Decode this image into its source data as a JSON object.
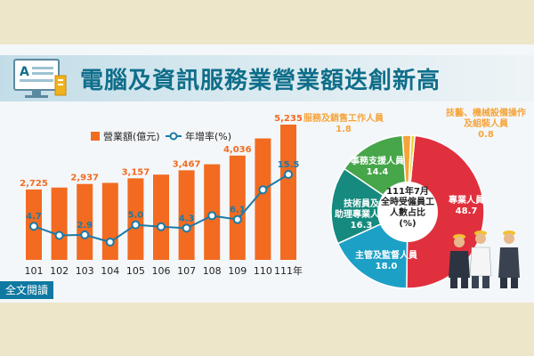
{
  "title": "電腦及資訊服務業營業額迭創新高",
  "full_text_button": "全文閱讀",
  "chart_data": [
    {
      "type": "bar",
      "categories": [
        "101",
        "102",
        "103",
        "104",
        "105",
        "106",
        "107",
        "108",
        "109",
        "110",
        "111年"
      ],
      "series": [
        {
          "name": "營業額(億元)",
          "type": "bar",
          "values": [
            2725,
            2800,
            2937,
            2980,
            3157,
            3300,
            3467,
            3700,
            4036,
            4700,
            5235
          ]
        },
        {
          "name": "年增率(%)",
          "type": "line",
          "values": [
            4.7,
            2.8,
            2.9,
            1.4,
            5.0,
            4.6,
            4.3,
            6.9,
            6.1,
            12.3,
            15.5
          ]
        }
      ],
      "bar_labels": [
        "2,725",
        "",
        "2,937",
        "",
        "3,157",
        "",
        "3,467",
        "",
        "4,036",
        "",
        "5,235"
      ],
      "line_labels": [
        "4.7",
        "",
        "2.9",
        "",
        "5.0",
        "",
        "4.3",
        "",
        "6.1",
        "",
        "15.5"
      ],
      "legend_placement": "top"
    },
    {
      "type": "pie",
      "center_label": "111年7月\n全時受僱員工\n人數占比\n(%)",
      "slices": [
        {
          "name": "專業人員",
          "value": 48.7,
          "color": "#e0303e",
          "label_value": "48.7"
        },
        {
          "name": "主管及監督人員",
          "value": 18.0,
          "color": "#1da0c6",
          "label_value": "18.0"
        },
        {
          "name": "技術員及\n助理專業人員",
          "value": 16.3,
          "color": "#168a7e",
          "label_value": "16.3"
        },
        {
          "name": "事務支援人員",
          "value": 14.4,
          "color": "#46a649",
          "label_value": "14.4"
        },
        {
          "name": "服務及銷售工作人員",
          "value": 1.8,
          "color": "#f5a43a",
          "label_value": "1.8"
        },
        {
          "name": "技藝、機械設備操作\n及組裝人員",
          "value": 0.8,
          "color": "#f2d230",
          "label_value": "0.8"
        }
      ]
    }
  ],
  "colors": {
    "bar": "#f26b21",
    "line": "#1b7aa6",
    "title": "#0f6e8a",
    "banner": "#c3dde8"
  }
}
